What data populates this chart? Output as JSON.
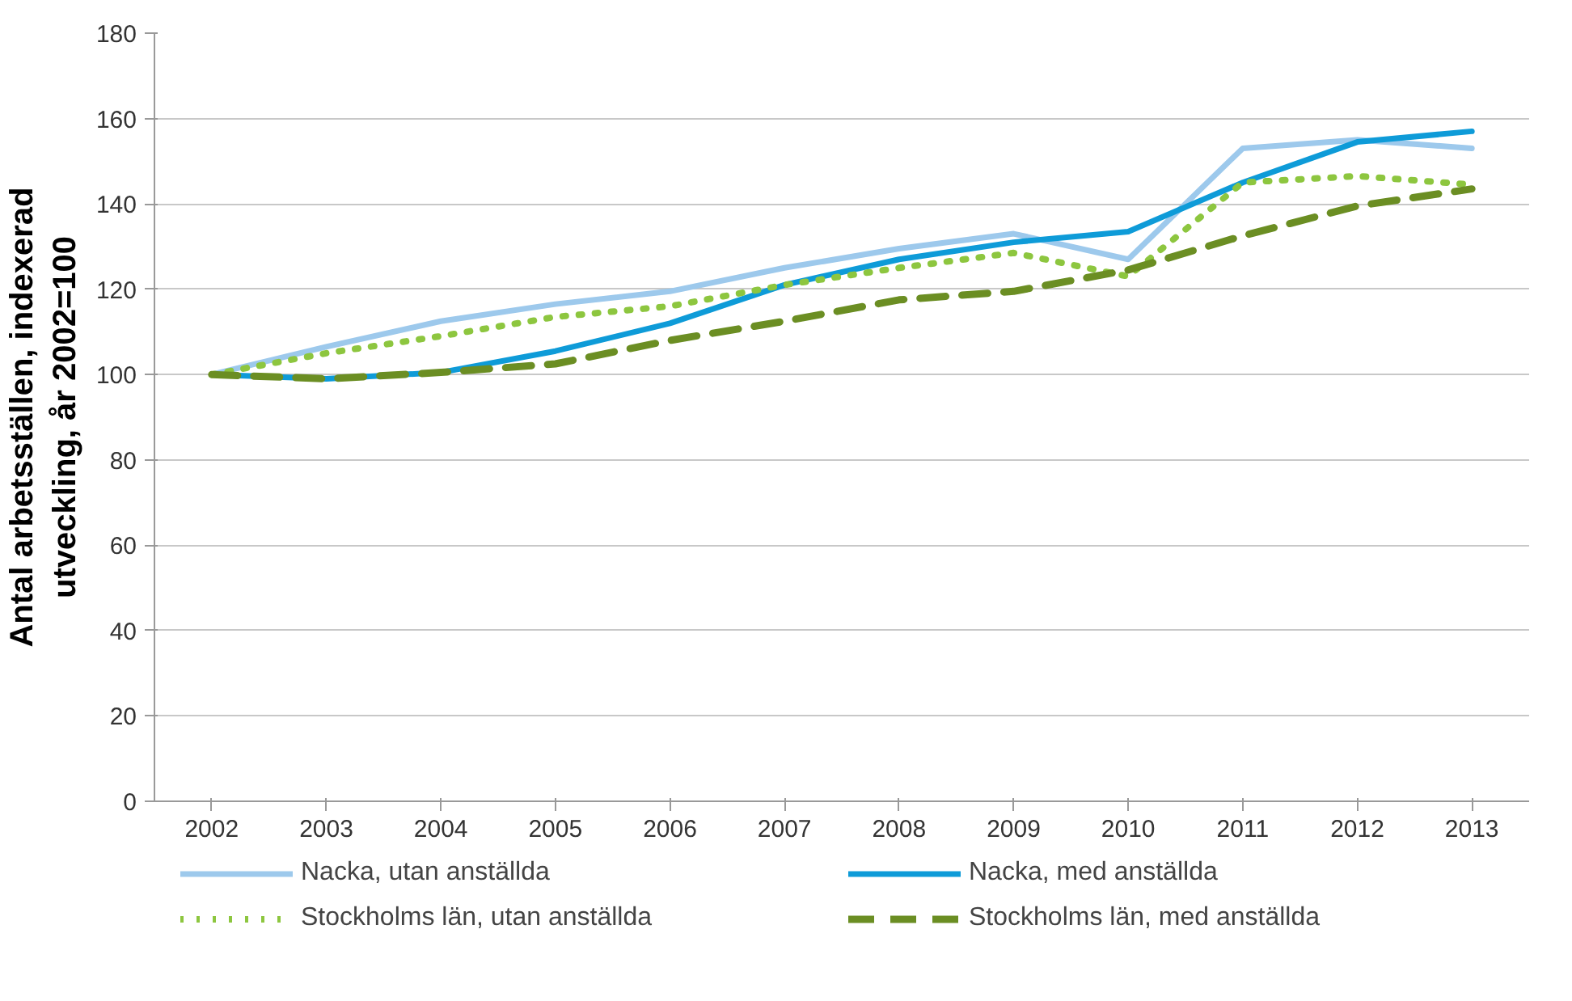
{
  "chart_data": {
    "type": "line",
    "ylabel": "Antal arbetsställen, indexerad\nutveckling, år 2002=100",
    "categories": [
      "2002",
      "2003",
      "2004",
      "2005",
      "2006",
      "2007",
      "2008",
      "2009",
      "2010",
      "2011",
      "2012",
      "2013"
    ],
    "series": [
      {
        "name": "Nacka, utan anställda",
        "color": "#9dc9ec",
        "line_style": "solid",
        "values": [
          100,
          106.5,
          112.5,
          116.5,
          119.5,
          125,
          129.5,
          133,
          127,
          153,
          155,
          153
        ]
      },
      {
        "name": "Nacka, med anställda",
        "color": "#0e9bd8",
        "line_style": "solid",
        "values": [
          100,
          99,
          100.5,
          105.5,
          112,
          121,
          127,
          131,
          133.5,
          145,
          154.5,
          157
        ]
      },
      {
        "name": "Stockholms län, utan anställda",
        "color": "#8dc63f",
        "line_style": "dotted",
        "values": [
          100,
          105,
          109,
          113.5,
          116,
          121,
          125,
          128.5,
          123,
          145,
          146.5,
          144.5
        ]
      },
      {
        "name": "Stockholms län, med anställda",
        "color": "#6b8e23",
        "line_style": "dashed",
        "values": [
          100,
          99,
          100.5,
          102.5,
          108,
          112.5,
          117.5,
          119.5,
          124.5,
          132.5,
          139.5,
          143.5
        ]
      }
    ],
    "ylim": [
      0,
      180
    ],
    "yticks": [
      0,
      20,
      40,
      60,
      80,
      100,
      120,
      140,
      160,
      180
    ],
    "grid": "y",
    "legend": "bottom",
    "marker": "none"
  }
}
